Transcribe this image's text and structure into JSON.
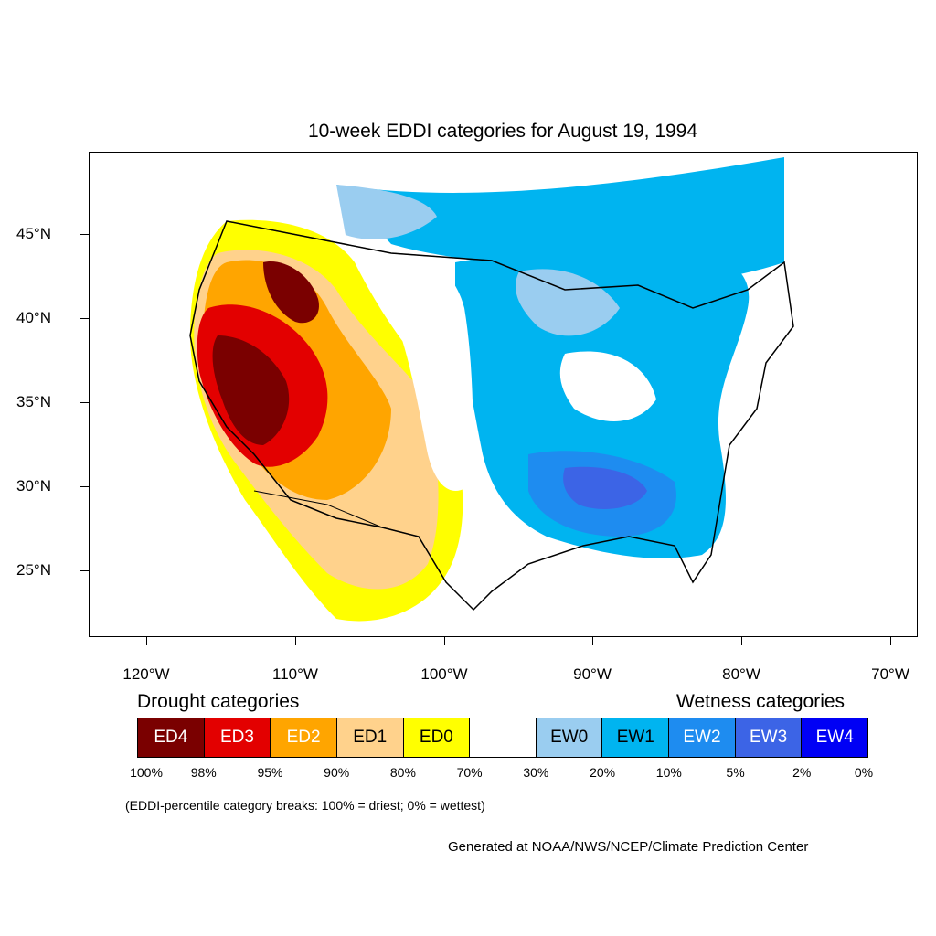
{
  "title": "10-week EDDI categories for August 19, 1994",
  "axes": {
    "lat_labels": [
      "45°N",
      "40°N",
      "35°N",
      "30°N",
      "25°N"
    ],
    "lon_labels": [
      "120°W",
      "110°W",
      "100°W",
      "90°W",
      "80°W",
      "70°W"
    ]
  },
  "legend": {
    "drought_heading": "Drought categories",
    "wetness_heading": "Wetness categories",
    "categories": [
      {
        "label": "ED4",
        "color": "#7a0000",
        "text_color": "#ffffff"
      },
      {
        "label": "ED3",
        "color": "#e30000",
        "text_color": "#ffffff"
      },
      {
        "label": "ED2",
        "color": "#ffa500",
        "text_color": "#ffffff"
      },
      {
        "label": "ED1",
        "color": "#ffd28c",
        "text_color": "#000000"
      },
      {
        "label": "ED0",
        "color": "#ffff00",
        "text_color": "#000000"
      },
      {
        "label": "",
        "color": "#ffffff",
        "text_color": "#000000"
      },
      {
        "label": "EW0",
        "color": "#9acdf0",
        "text_color": "#000000"
      },
      {
        "label": "EW1",
        "color": "#00b4f0",
        "text_color": "#000000"
      },
      {
        "label": "EW2",
        "color": "#1e8cf0",
        "text_color": "#ffffff"
      },
      {
        "label": "EW3",
        "color": "#3c64e6",
        "text_color": "#ffffff"
      },
      {
        "label": "EW4",
        "color": "#0000f5",
        "text_color": "#ffffff"
      }
    ],
    "breaks": [
      "100%",
      "98%",
      "95%",
      "90%",
      "80%",
      "70%",
      "30%",
      "20%",
      "10%",
      "5%",
      "2%",
      "0%"
    ]
  },
  "note": "(EDDI-percentile category breaks: 100% = driest; 0% = wettest)",
  "credit": "Generated at NOAA/NWS/NCEP/Climate Prediction Center"
}
